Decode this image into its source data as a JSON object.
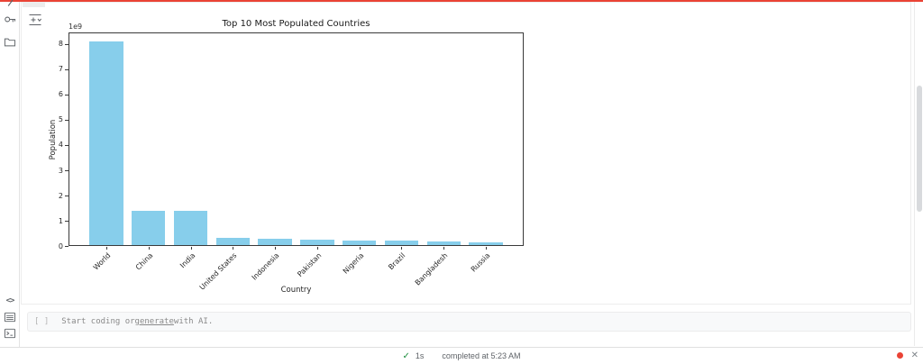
{
  "top_progress_bar": {
    "color": "#ea4335"
  },
  "sidebar": {
    "icons_top": [
      {
        "name": "search-icon-partial"
      },
      {
        "name": "key-icon"
      },
      {
        "name": "folder-icon"
      }
    ],
    "icons_bottom": [
      {
        "name": "code-snippets-icon",
        "glyph": "<>"
      },
      {
        "name": "list-panel-icon"
      },
      {
        "name": "terminal-icon"
      }
    ]
  },
  "cell": {
    "insert_icon": "insert-cell-menu"
  },
  "chart_data": {
    "type": "bar",
    "title": "Top 10 Most Populated Countries",
    "xlabel": "Country",
    "ylabel": "Population",
    "y_offset_text": "1e9",
    "categories": [
      "World",
      "China",
      "India",
      "United States",
      "Indonesia",
      "Pakistan",
      "Nigeria",
      "Brazil",
      "Bangladesh",
      "Russia"
    ],
    "values": [
      8100000000,
      1410000000,
      1390000000,
      340000000,
      280000000,
      245000000,
      225000000,
      215000000,
      170000000,
      145000000
    ],
    "bar_color": "#87ceeb",
    "ylim": [
      0,
      8460000000
    ],
    "yticks": [
      0,
      1,
      2,
      3,
      4,
      5,
      6,
      7,
      8
    ],
    "ytick_step": 1000000000,
    "x_tick_rotation": 45,
    "grid": false,
    "legend": null
  },
  "placeholder_cell": {
    "gutter": "[ ]",
    "text_before": "Start coding or ",
    "link_text": "generate",
    "text_after": " with AI."
  },
  "status_bar": {
    "check_icon": "✓",
    "duration": "1s",
    "message": "completed at 5:23 AM",
    "record_dot_color": "#ea4335",
    "close_icon": "✕"
  }
}
